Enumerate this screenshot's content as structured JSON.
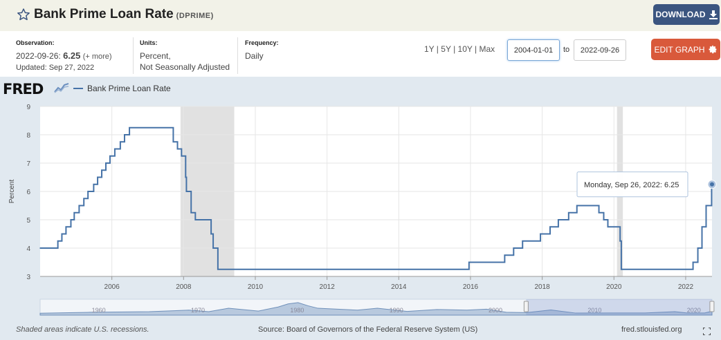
{
  "header": {
    "title": "Bank Prime Loan Rate",
    "series_id": "(DPRIME)",
    "download_label": "DOWNLOAD"
  },
  "meta": {
    "observation_label": "Observation:",
    "observation_date": "2022-09-26:",
    "observation_value": "6.25",
    "observation_more": "(+ more)",
    "updated": "Updated: Sep 27, 2022",
    "units_label": "Units:",
    "units_line1": "Percent,",
    "units_line2": "Not Seasonally Adjusted",
    "frequency_label": "Frequency:",
    "frequency": "Daily"
  },
  "controls": {
    "ranges": [
      "1Y",
      "5Y",
      "10Y",
      "Max"
    ],
    "start_date": "2004-01-01",
    "to_label": "to",
    "end_date": "2022-09-26",
    "edit_label": "EDIT GRAPH"
  },
  "logo": "FRED",
  "colors": {
    "series": "#4572a7",
    "recession": "#e1e1e1",
    "download": "#3b5580",
    "edit": "#d9593b"
  },
  "tooltip": {
    "text": "Monday, Sep 26, 2022: 6.25"
  },
  "footer": {
    "note": "Shaded areas indicate U.S. recessions.",
    "source": "Source: Board of Governors of the Federal Reserve System (US)",
    "url": "fred.stlouisfed.org"
  },
  "navigator": {
    "tick_labels": [
      "1960",
      "1970",
      "1980",
      "1990",
      "2000",
      "2010",
      "2020"
    ]
  },
  "chart_data": {
    "type": "line",
    "title": "",
    "xlabel": "",
    "ylabel": "Percent",
    "xlim": [
      "2004-01-01",
      "2022-09-26"
    ],
    "ylim": [
      3,
      9
    ],
    "y_ticks": [
      3,
      4,
      5,
      6,
      7,
      8,
      9
    ],
    "x_ticks": [
      "2006",
      "2008",
      "2010",
      "2012",
      "2014",
      "2016",
      "2018",
      "2020",
      "2022"
    ],
    "grid": true,
    "legend_position": "top-left",
    "recessions": [
      [
        "2007-12-01",
        "2009-06-01"
      ],
      [
        "2020-02-01",
        "2020-04-01"
      ]
    ],
    "series": [
      {
        "name": "Bank Prime Loan Rate",
        "x": [
          "2004-01-01",
          "2004-06-30",
          "2004-08-10",
          "2004-09-21",
          "2004-11-10",
          "2004-12-14",
          "2005-02-02",
          "2005-03-22",
          "2005-05-03",
          "2005-06-30",
          "2005-08-09",
          "2005-09-20",
          "2005-11-01",
          "2005-12-13",
          "2006-01-31",
          "2006-03-28",
          "2006-05-10",
          "2006-06-29",
          "2007-09-18",
          "2007-10-31",
          "2007-12-11",
          "2008-01-22",
          "2008-01-30",
          "2008-03-18",
          "2008-04-30",
          "2008-10-08",
          "2008-10-29",
          "2008-12-16",
          "2015-12-17",
          "2016-12-15",
          "2017-03-16",
          "2017-06-15",
          "2017-12-14",
          "2018-03-22",
          "2018-06-14",
          "2018-09-27",
          "2018-12-20",
          "2019-08-01",
          "2019-09-19",
          "2019-10-31",
          "2020-03-04",
          "2020-03-16",
          "2022-03-17",
          "2022-05-05",
          "2022-06-16",
          "2022-07-28",
          "2022-09-22",
          "2022-09-26"
        ],
        "values": [
          4.0,
          4.25,
          4.5,
          4.75,
          5.0,
          5.25,
          5.5,
          5.75,
          6.0,
          6.25,
          6.5,
          6.75,
          7.0,
          7.25,
          7.5,
          7.75,
          8.0,
          8.25,
          7.75,
          7.5,
          7.25,
          6.5,
          6.0,
          5.25,
          5.0,
          4.5,
          4.0,
          3.25,
          3.5,
          3.75,
          4.0,
          4.25,
          4.5,
          4.75,
          5.0,
          5.25,
          5.5,
          5.25,
          5.0,
          4.75,
          4.25,
          3.25,
          3.5,
          4.0,
          4.75,
          5.5,
          6.25,
          6.25
        ]
      }
    ]
  }
}
